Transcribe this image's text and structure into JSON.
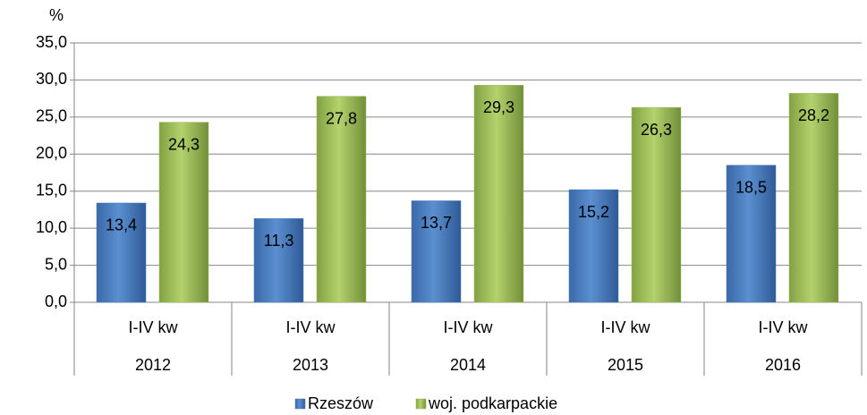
{
  "chart_data": {
    "type": "bar",
    "y_label": "%",
    "categories": [
      "2012",
      "2013",
      "2014",
      "2015",
      "2016"
    ],
    "subcategories": [
      "I-IV kw",
      "I-IV kw",
      "I-IV kw",
      "I-IV kw",
      "I-IV kw"
    ],
    "series": [
      {
        "name": "Rzeszów",
        "color": "#4a7ebb",
        "values": [
          13.4,
          11.3,
          13.7,
          15.2,
          18.5
        ],
        "value_labels": [
          "13,4",
          "11,3",
          "13,7",
          "15,2",
          "18,5"
        ]
      },
      {
        "name": "woj. podkarpackie",
        "color": "#9bbb59",
        "values": [
          24.3,
          27.8,
          29.3,
          26.3,
          28.2
        ],
        "value_labels": [
          "24,3",
          "27,8",
          "29,3",
          "26,3",
          "28,2"
        ]
      }
    ],
    "ylim": [
      0,
      35
    ],
    "yticks": [
      {
        "value": 0,
        "label": "0,0"
      },
      {
        "value": 5,
        "label": "5,0"
      },
      {
        "value": 10,
        "label": "10,0"
      },
      {
        "value": 15,
        "label": "15,0"
      },
      {
        "value": 20,
        "label": "20,0"
      },
      {
        "value": 25,
        "label": "25,0"
      },
      {
        "value": 30,
        "label": "30,0"
      },
      {
        "value": 35,
        "label": "35,0"
      }
    ],
    "grid": true,
    "legend": "bottom"
  }
}
